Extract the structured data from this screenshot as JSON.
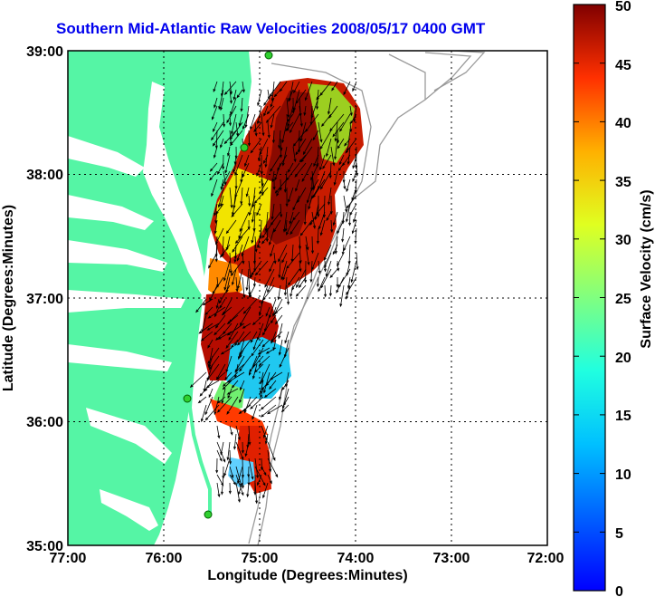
{
  "title": "Southern Mid-Atlantic Raw Velocities 2008/05/17 0400 GMT",
  "map": {
    "xlabel": "Longitude (Degrees:Minutes)",
    "ylabel": "Latitude (Degrees:Minutes)",
    "x_ticks": [
      "77:00",
      "76:00",
      "75:00",
      "74:00",
      "73:00",
      "72:00"
    ],
    "y_ticks": [
      "39:00",
      "38:00",
      "37:00",
      "36:00",
      "35:00"
    ],
    "lon_range": [
      -77,
      -72
    ],
    "lat_range": [
      35,
      39
    ],
    "grid": "dotted"
  },
  "colorbar": {
    "label": "Surface Velocity (cm/s)",
    "ticks": [
      "0",
      "5",
      "10",
      "15",
      "20",
      "25",
      "30",
      "35",
      "40",
      "45",
      "50"
    ],
    "range": [
      0,
      50
    ],
    "colormap": "jet"
  },
  "colors": {
    "land": "#55f5a5",
    "title": "#0000ee",
    "isobath": "#9a9a9a"
  }
}
